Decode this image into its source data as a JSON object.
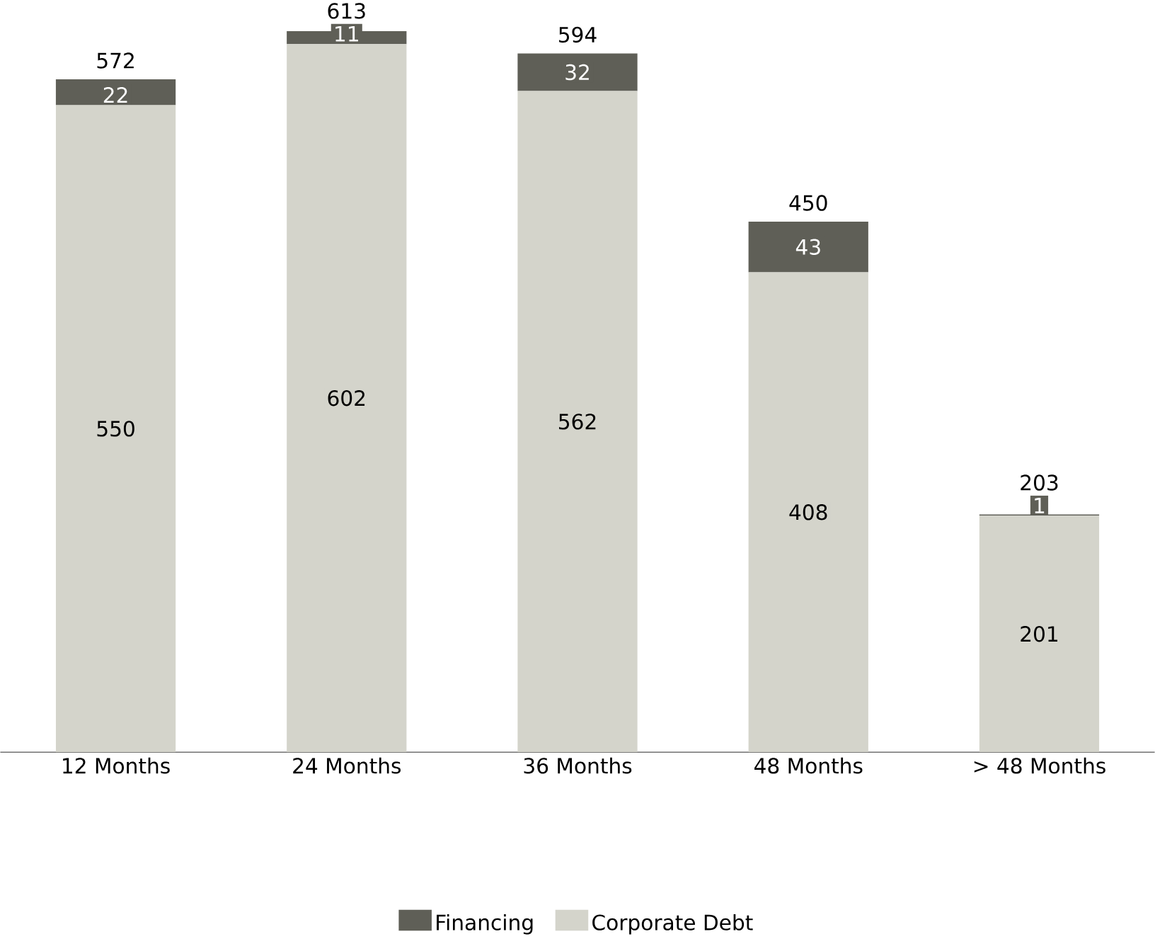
{
  "chart_data": {
    "type": "bar",
    "stacked": true,
    "categories": [
      "12 Months",
      "24 Months",
      "36 Months",
      "48 Months",
      "> 48 Months"
    ],
    "series": [
      {
        "name": "Corporate Debt",
        "color": "#d4d4cb",
        "values": [
          550,
          602,
          562,
          408,
          201
        ]
      },
      {
        "name": "Financing",
        "color": "#5f5f57",
        "values": [
          22,
          11,
          32,
          43,
          1
        ]
      }
    ],
    "totals": [
      "572",
      "613",
      "594",
      "450",
      "203"
    ],
    "data_labels": true,
    "legend": "bottom"
  }
}
